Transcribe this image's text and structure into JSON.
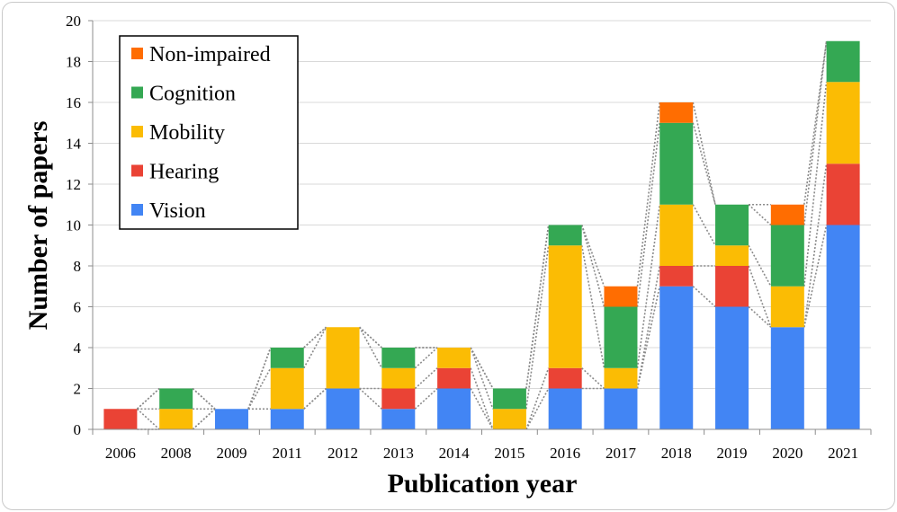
{
  "chart_data": {
    "type": "bar",
    "stacked": true,
    "categories": [
      "2006",
      "2008",
      "2009",
      "2011",
      "2012",
      "2013",
      "2014",
      "2015",
      "2016",
      "2017",
      "2018",
      "2019",
      "2020",
      "2021"
    ],
    "series": [
      {
        "name": "Vision",
        "color": "#4285F4",
        "values": [
          0,
          0,
          1,
          1,
          2,
          1,
          2,
          0,
          2,
          2,
          7,
          6,
          5,
          10
        ]
      },
      {
        "name": "Hearing",
        "color": "#EA4335",
        "values": [
          1,
          0,
          0,
          0,
          0,
          1,
          1,
          0,
          1,
          0,
          1,
          2,
          0,
          3
        ]
      },
      {
        "name": "Mobility",
        "color": "#FBBC04",
        "values": [
          0,
          1,
          0,
          2,
          3,
          1,
          1,
          1,
          6,
          1,
          3,
          1,
          2,
          4
        ]
      },
      {
        "name": "Cognition",
        "color": "#34A853",
        "values": [
          0,
          1,
          0,
          1,
          0,
          1,
          0,
          1,
          1,
          3,
          4,
          2,
          3,
          2
        ]
      },
      {
        "name": "Non-impaired",
        "color": "#FF6D01",
        "values": [
          0,
          0,
          0,
          0,
          0,
          0,
          0,
          0,
          0,
          1,
          1,
          0,
          1,
          0
        ]
      }
    ],
    "xlabel": "Publication year",
    "ylabel": "Number of papers",
    "ylim": [
      0,
      20
    ],
    "yticks": [
      "0",
      "2",
      "4",
      "6",
      "8",
      "10",
      "12",
      "14",
      "16",
      "18",
      "20"
    ],
    "grid": "horizontal",
    "legend_position": "top-left",
    "legend_order": [
      "Non-impaired",
      "Cognition",
      "Mobility",
      "Hearing",
      "Vision"
    ],
    "connector_lines": "dotted gray lines joining stacked segment boundaries of adjacent bars"
  }
}
